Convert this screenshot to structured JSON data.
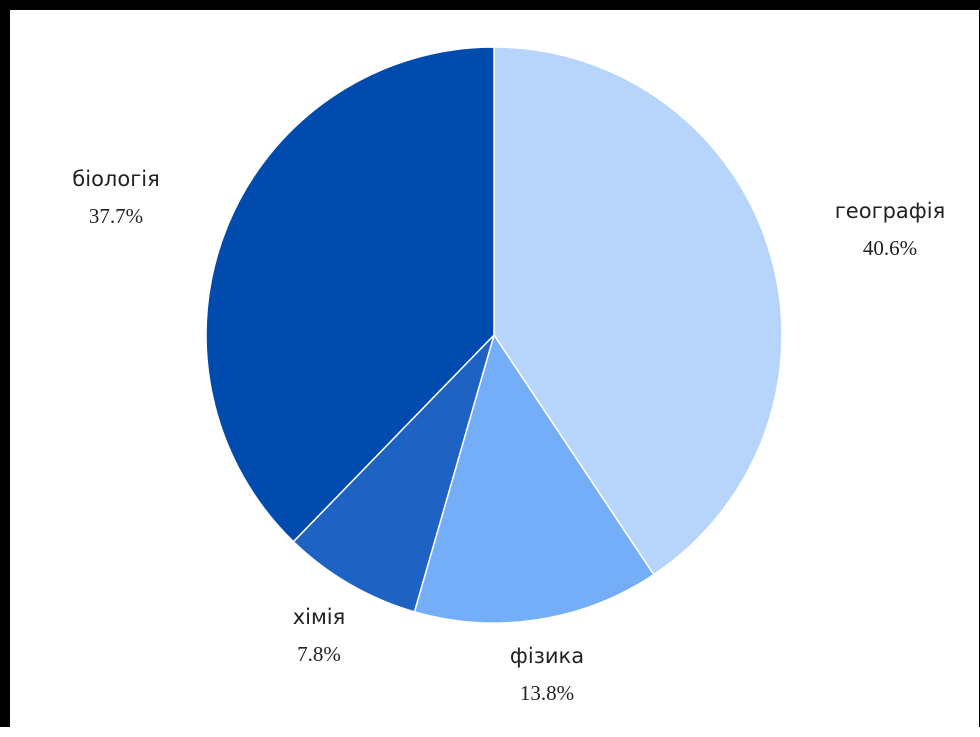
{
  "chart_data": {
    "type": "pie",
    "slices": [
      {
        "label": "географія",
        "value": 40.6,
        "value_label": "40.6%",
        "color": "#b7d5fb"
      },
      {
        "label": "фізика",
        "value": 13.8,
        "value_label": "13.8%",
        "color": "#74aef8"
      },
      {
        "label": "хімія",
        "value": 7.8,
        "value_label": "7.8%",
        "color": "#1e62c4"
      },
      {
        "label": "біологія",
        "value": 37.7,
        "value_label": "37.7%",
        "color": "#004bad"
      }
    ],
    "start_angle_deg": 0,
    "direction": "clockwise",
    "legend": "none",
    "labels": "outside"
  }
}
